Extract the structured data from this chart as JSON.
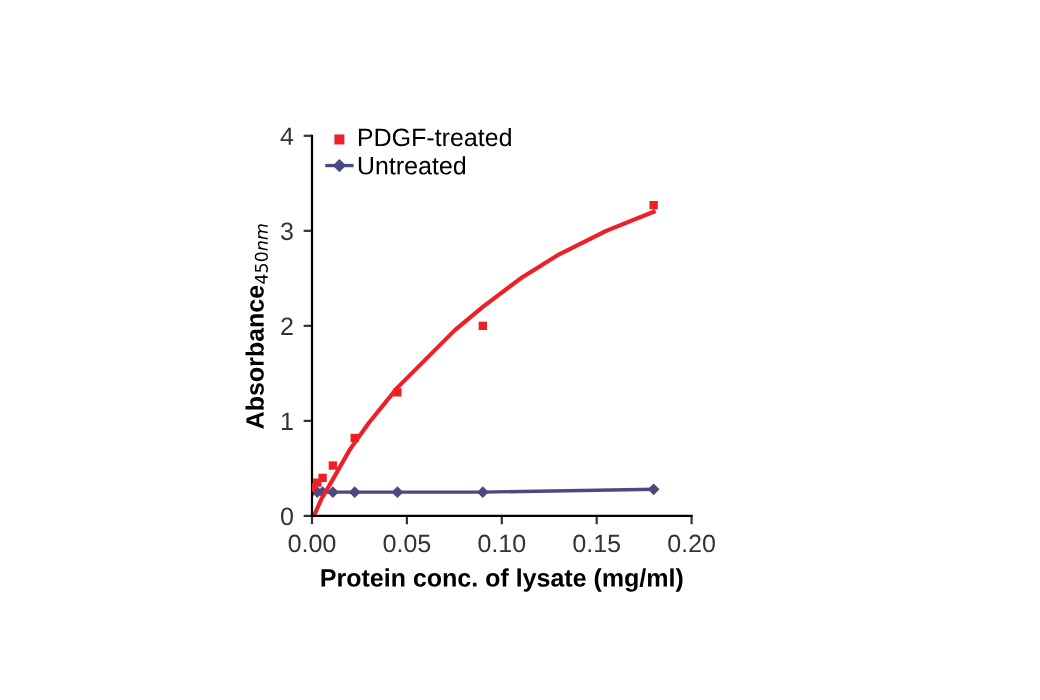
{
  "chart_data": {
    "type": "scatter",
    "xlabel": "Protein conc. of lysate (mg/ml)",
    "ylabel": "Absorbance$_{450nm}$",
    "xlim": [
      0,
      0.2
    ],
    "ylim": [
      0,
      4
    ],
    "xticks": [
      {
        "value": 0,
        "label": "0.00"
      },
      {
        "value": 0.05,
        "label": "0.05"
      },
      {
        "value": 0.1,
        "label": "0.10"
      },
      {
        "value": 0.15,
        "label": "0.15"
      },
      {
        "value": 0.2,
        "label": "0.20"
      }
    ],
    "yticks": [
      0,
      1,
      2,
      3,
      4
    ],
    "grid": false,
    "legend": "top left",
    "series": [
      {
        "name": "PDGF-treated",
        "marker": "square",
        "color": "#ee2027",
        "x": [
          0,
          0.0028,
          0.0056,
          0.011,
          0.0225,
          0.045,
          0.09,
          0.18
        ],
        "values": [
          0.3,
          0.35,
          0.4,
          0.53,
          0.82,
          1.3,
          2.0,
          3.27
        ]
      },
      {
        "name": "Untreated",
        "type": "line",
        "marker": "diamond",
        "color": "#4b4a7e",
        "x": [
          0,
          0.0028,
          0.0056,
          0.011,
          0.0225,
          0.045,
          0.09,
          0.18
        ],
        "values": [
          0.26,
          0.25,
          0.25,
          0.25,
          0.25,
          0.25,
          0.25,
          0.28
        ]
      },
      {
        "type": "line",
        "marker": "none",
        "color": "#ee2027",
        "x": [
          0.001,
          0.005,
          0.01,
          0.02,
          0.03,
          0.045,
          0.06,
          0.075,
          0.09,
          0.11,
          0.13,
          0.155,
          0.18
        ],
        "values": [
          0,
          0.18,
          0.35,
          0.7,
          0.98,
          1.35,
          1.65,
          1.95,
          2.2,
          2.5,
          2.75,
          3.0,
          3.2
        ]
      }
    ]
  }
}
